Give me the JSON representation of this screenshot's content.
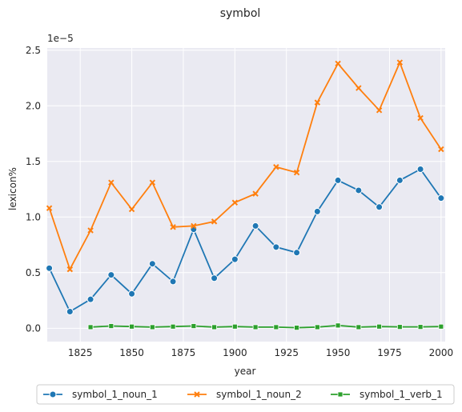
{
  "chart_data": {
    "type": "line",
    "title": "symbol",
    "xlabel": "year",
    "ylabel": "lexicon%",
    "y_scale_note": "1e−5",
    "xlim": [
      1809,
      2002
    ],
    "ylim": [
      -0.12,
      2.52
    ],
    "x_ticks": [
      1825,
      1850,
      1875,
      1900,
      1925,
      1950,
      1975,
      2000
    ],
    "y_ticks": [
      0.0,
      0.5,
      1.0,
      1.5,
      2.0,
      2.5
    ],
    "y_tick_labels": [
      "0.0",
      "0.5",
      "1.0",
      "1.5",
      "2.0",
      "2.5"
    ],
    "grid": true,
    "background": "#eaeaf2",
    "legend_position": "bottom-center, below axes",
    "series": [
      {
        "name": "symbol_1_noun_1",
        "color": "#1f77b4",
        "marker": "circle",
        "x": [
          1810,
          1820,
          1830,
          1840,
          1850,
          1860,
          1870,
          1880,
          1890,
          1900,
          1910,
          1920,
          1930,
          1940,
          1950,
          1960,
          1970,
          1980,
          1990,
          2000
        ],
        "values": [
          0.54,
          0.15,
          0.26,
          0.48,
          0.31,
          0.58,
          0.42,
          0.89,
          0.45,
          0.62,
          0.92,
          0.73,
          0.68,
          1.05,
          1.33,
          1.24,
          1.09,
          1.33,
          1.43,
          1.17
        ]
      },
      {
        "name": "symbol_1_noun_2",
        "color": "#ff7f0e",
        "marker": "x",
        "x": [
          1810,
          1820,
          1830,
          1840,
          1850,
          1860,
          1870,
          1880,
          1890,
          1900,
          1910,
          1920,
          1930,
          1940,
          1950,
          1960,
          1970,
          1980,
          1990,
          2000
        ],
        "values": [
          1.08,
          0.53,
          0.88,
          1.31,
          1.07,
          1.31,
          0.91,
          0.92,
          0.96,
          1.13,
          1.21,
          1.45,
          1.4,
          2.03,
          2.38,
          2.16,
          1.96,
          2.39,
          1.89,
          1.61
        ]
      },
      {
        "name": "symbol_1_verb_1",
        "color": "#2ca02c",
        "marker": "square",
        "x": [
          1830,
          1840,
          1850,
          1860,
          1870,
          1880,
          1890,
          1900,
          1910,
          1920,
          1930,
          1940,
          1950,
          1960,
          1970,
          1980,
          1990,
          2000
        ],
        "values": [
          0.01,
          0.02,
          0.015,
          0.01,
          0.015,
          0.02,
          0.01,
          0.015,
          0.01,
          0.01,
          0.005,
          0.01,
          0.025,
          0.01,
          0.015,
          0.012,
          0.012,
          0.015
        ]
      }
    ]
  }
}
